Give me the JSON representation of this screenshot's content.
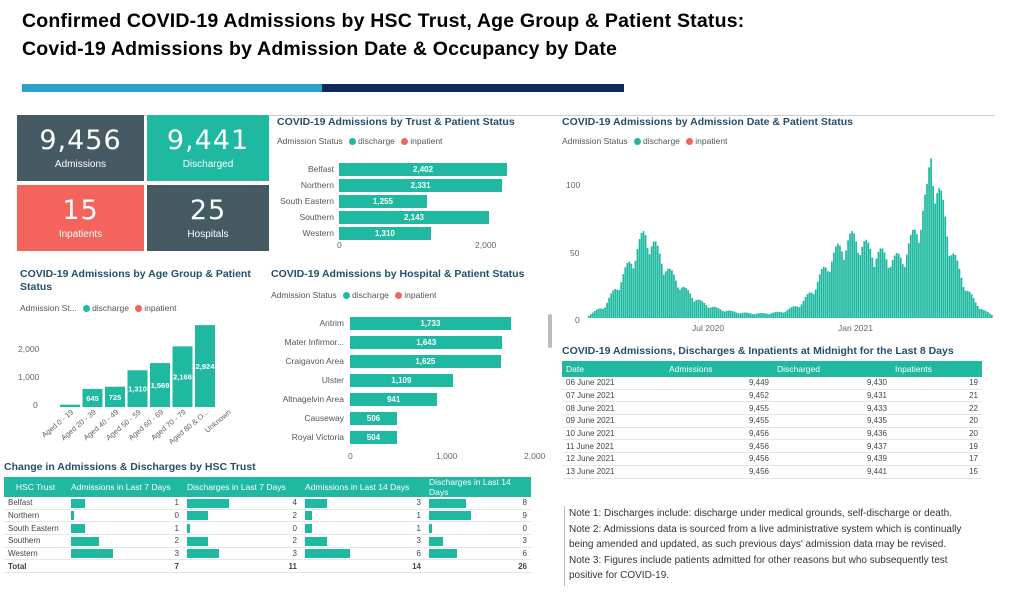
{
  "header": {
    "title_line1": "Confirmed  COVID-19  Admissions  by  HSC  Trust,  Age  Group  &  Patient  Status:",
    "title_line2": "Covid-19  Admissions  by  Admission  Date  &  Occupancy  by  Date"
  },
  "colors": {
    "teal": "#1fb9a1",
    "dark": "#465a63",
    "red": "#f4645c",
    "navy": "#0e2a5a",
    "blue": "#2aa0c8",
    "title": "#254f6a"
  },
  "kpis": [
    {
      "value": "9,456",
      "label": "Admissions",
      "color": "#465a63"
    },
    {
      "value": "9,441",
      "label": "Discharged",
      "color": "#1fb9a1"
    },
    {
      "value": "15",
      "label": "Inpatients",
      "color": "#f4645c"
    },
    {
      "value": "25",
      "label": "Hospitals",
      "color": "#465a63"
    }
  ],
  "trust_chart": {
    "title": "COVID-19 Admissions by Trust & Patient Status",
    "legend_label": "Admission Status",
    "legend_items": [
      "discharge",
      "inpatient"
    ],
    "axis_ticks": [
      "0",
      "2,000"
    ]
  },
  "age_chart": {
    "title": "COVID-19 Admissions by Age Group & Patient Status",
    "legend_label": "Admission St...",
    "legend_items": [
      "discharge",
      "inpatient"
    ],
    "axis_ticks": [
      "2,000",
      "1,000",
      "0"
    ]
  },
  "hospital_chart": {
    "title": "COVID-19 Admissions by Hospital & Patient Status",
    "legend_label": "Admission Status",
    "legend_items": [
      "discharge",
      "inpatient"
    ],
    "axis_ticks": [
      "0",
      "1,000",
      "2,000"
    ]
  },
  "date_chart": {
    "title": "COVID-19 Admissions by Admission Date & Patient Status",
    "legend_label": "Admission Status",
    "legend_items": [
      "discharge",
      "inpatient"
    ],
    "y_ticks": [
      "100",
      "50",
      "0"
    ],
    "x_ticks": [
      "Jul 2020",
      "Jan 2021"
    ]
  },
  "chart_data": [
    {
      "type": "bar",
      "orientation": "horizontal",
      "title": "COVID-19 Admissions by Trust & Patient Status",
      "categories": [
        "Belfast",
        "Northern",
        "South Eastern",
        "Southern",
        "Western"
      ],
      "series": [
        {
          "name": "discharge",
          "values": [
            2402,
            2331,
            1255,
            2143,
            1310
          ]
        }
      ],
      "value_labels": [
        "2,402",
        "2,331",
        "1,255",
        "2,143",
        "1,310"
      ],
      "xlim": [
        0,
        2500
      ]
    },
    {
      "type": "bar",
      "title": "COVID-19 Admissions by Age Group & Patient Status",
      "categories": [
        "Aged 0 - 19",
        "Aged 20 - 39",
        "Aged 40 - 49",
        "Aged 50 - 59",
        "Aged 60 - 69",
        "Aged 70 - 79",
        "Aged 80 & O...",
        "Unknown"
      ],
      "series": [
        {
          "name": "discharge",
          "values": [
            85,
            645,
            725,
            1310,
            1569,
            2166,
            2924,
            0
          ]
        }
      ],
      "value_labels": [
        "",
        "645",
        "725",
        "1,310",
        "1,569",
        "2,166",
        "2,924",
        ""
      ],
      "ylim": [
        0,
        3000
      ]
    },
    {
      "type": "bar",
      "orientation": "horizontal",
      "title": "COVID-19 Admissions by Hospital & Patient Status",
      "categories": [
        "Antrim",
        "Mater Infirmor...",
        "Craigavon Area",
        "Ulster",
        "Altnagelvin Area",
        "Causeway",
        "Royal Victoria"
      ],
      "series": [
        {
          "name": "discharge",
          "values": [
            1733,
            1643,
            1625,
            1109,
            941,
            506,
            504
          ]
        }
      ],
      "value_labels": [
        "1,733",
        "1,643",
        "1,625",
        "1,109",
        "941",
        "506",
        "504"
      ],
      "xlim": [
        0,
        2000
      ]
    },
    {
      "type": "bar",
      "title": "COVID-19 Admissions by Admission Date & Patient Status",
      "x_range": [
        "2020-03",
        "2021-06"
      ],
      "ylim": [
        0,
        115
      ],
      "series": [
        {
          "name": "discharge",
          "profile": [
            [
              0,
              2
            ],
            [
              4,
              8
            ],
            [
              8,
              25
            ],
            [
              12,
              45
            ],
            [
              14,
              55
            ],
            [
              16,
              48
            ],
            [
              20,
              30
            ],
            [
              24,
              18
            ],
            [
              28,
              10
            ],
            [
              32,
              6
            ],
            [
              36,
              4
            ],
            [
              40,
              3
            ],
            [
              44,
              3
            ],
            [
              48,
              4
            ],
            [
              50,
              6
            ],
            [
              53,
              10
            ],
            [
              56,
              20
            ],
            [
              58,
              30
            ],
            [
              60,
              38
            ],
            [
              62,
              45
            ],
            [
              64,
              50
            ],
            [
              66,
              52
            ],
            [
              68,
              48
            ],
            [
              70,
              44
            ],
            [
              72,
              42
            ],
            [
              74,
              40
            ],
            [
              76,
              38
            ],
            [
              78,
              40
            ],
            [
              80,
              50
            ],
            [
              82,
              62
            ],
            [
              84,
              80
            ],
            [
              85,
              108
            ],
            [
              86,
              90
            ],
            [
              88,
              70
            ],
            [
              90,
              45
            ],
            [
              92,
              30
            ],
            [
              94,
              18
            ],
            [
              96,
              10
            ],
            [
              98,
              5
            ],
            [
              100,
              2
            ]
          ]
        }
      ]
    }
  ],
  "occupancy": {
    "title": "COVID-19 Admissions, Discharges & Inpatients at Midnight for the Last 8 Days",
    "headers": [
      "Date",
      "Admissions",
      "Discharged",
      "Inpatients"
    ],
    "rows": [
      [
        "06 June 2021",
        "9,449",
        "9,430",
        "19"
      ],
      [
        "07 June 2021",
        "9,452",
        "9,431",
        "21"
      ],
      [
        "08 June 2021",
        "9,455",
        "9,433",
        "22"
      ],
      [
        "09 June 2021",
        "9,455",
        "9,435",
        "20"
      ],
      [
        "10 June 2021",
        "9,456",
        "9,436",
        "20"
      ],
      [
        "11 June 2021",
        "9,456",
        "9,437",
        "19"
      ],
      [
        "12 June 2021",
        "9,456",
        "9,439",
        "17"
      ],
      [
        "13 June 2021",
        "9,456",
        "9,441",
        "15"
      ]
    ]
  },
  "change": {
    "title": "Change in Admissions & Discharges by HSC Trust",
    "headers": [
      "HSC Trust",
      "Admissions in Last 7 Days",
      "Discharges in Last 7 Days",
      "Admissions in Last 14 Days",
      "Discharges in Last 14 Days"
    ],
    "rows": [
      [
        "Belfast",
        "1",
        "4",
        "3",
        "8"
      ],
      [
        "Northern",
        "0",
        "2",
        "1",
        "9"
      ],
      [
        "South Eastern",
        "1",
        "0",
        "1",
        "0"
      ],
      [
        "Southern",
        "2",
        "2",
        "3",
        "3"
      ],
      [
        "Western",
        "3",
        "3",
        "6",
        "6"
      ]
    ],
    "total": [
      "Total",
      "7",
      "11",
      "14",
      "26"
    ]
  },
  "notes": [
    "Note 1: Discharges include: discharge under medical grounds, self-discharge or death.",
    "Note 2: Admissions data is sourced from a live administrative system which is continually",
    "being amended and updated, as such previous days' admission data may be revised.",
    "Note 3: Figures include patients admitted for other reasons but who subsequently test",
    "positive for COVID-19."
  ]
}
